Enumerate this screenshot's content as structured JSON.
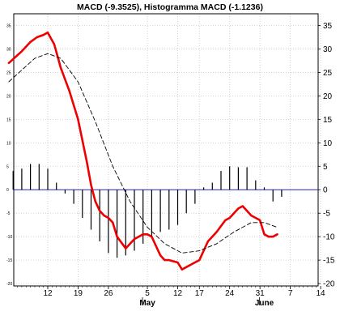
{
  "chart_data": {
    "type": "line",
    "title": "MACD (-9.3525), Histogramma MACD (-1.1236)",
    "ylim": [
      -20.5,
      37.5
    ],
    "y_ticks": [
      35,
      30,
      25,
      20,
      15,
      10,
      5,
      0,
      -5,
      -10,
      -15,
      -20
    ],
    "x_ticks": [
      {
        "label": "12",
        "day": 12
      },
      {
        "label": "19",
        "day": 19
      },
      {
        "label": "26",
        "day": 26
      },
      {
        "label": "5",
        "day": 35
      },
      {
        "label": "12",
        "day": 42
      },
      {
        "label": "17",
        "day": 47
      },
      {
        "label": "24",
        "day": 54
      },
      {
        "label": "31",
        "day": 61
      },
      {
        "label": "7",
        "day": 68
      },
      {
        "label": "14",
        "day": 75
      }
    ],
    "months": [
      {
        "label": "May",
        "day": 35
      },
      {
        "label": "June",
        "day": 62
      }
    ],
    "grid": true,
    "zero_line_color": "#2020c0",
    "series": [
      {
        "style": "macd",
        "color": "#ee0000",
        "x": [
          3,
          6,
          8,
          9.5,
          11,
          12,
          13.5,
          15,
          17,
          19,
          21,
          22,
          23,
          24,
          25,
          26,
          27,
          28,
          30,
          32,
          34,
          35,
          36,
          38,
          39,
          40,
          42,
          43,
          45,
          46,
          47,
          49,
          51,
          53,
          54,
          56,
          57,
          59,
          60,
          61,
          62,
          63,
          64,
          65
        ],
        "y": [
          27,
          29.5,
          31.5,
          32.5,
          33,
          33.5,
          31,
          26,
          21,
          15,
          6,
          1,
          -2.5,
          -4.5,
          -5.5,
          -6,
          -7,
          -10,
          -12.5,
          -10.5,
          -9.5,
          -9.5,
          -10,
          -14,
          -15,
          -15,
          -15.5,
          -17,
          -16,
          -15.5,
          -15,
          -11,
          -9,
          -6.5,
          -6,
          -4,
          -3.5,
          -5.5,
          -6,
          -6.5,
          -9.5,
          -10,
          -10,
          -9.5
        ]
      },
      {
        "style": "signal",
        "color": "#000000",
        "x": [
          3,
          6,
          9,
          12,
          15,
          19,
          23,
          27,
          31,
          35,
          39,
          43,
          47,
          51,
          55,
          59,
          62,
          65
        ],
        "y": [
          23,
          25.5,
          28,
          29,
          28,
          23,
          14.5,
          5,
          -2.5,
          -8,
          -11.5,
          -13.5,
          -13,
          -11.5,
          -9,
          -7,
          -7,
          -8
        ]
      }
    ],
    "histogram": {
      "color": "#000000",
      "x": [
        4,
        6,
        8,
        10,
        12,
        14,
        16,
        18,
        20,
        22,
        24,
        26,
        28,
        30,
        32,
        34,
        36,
        38,
        40,
        42,
        44,
        46,
        48,
        50,
        52,
        54,
        56,
        58,
        60,
        62,
        64,
        66
      ],
      "y": [
        4,
        4.5,
        5.5,
        5.5,
        4.5,
        1.5,
        -0.8,
        -3,
        -6,
        -8.5,
        -11,
        -13.5,
        -14.5,
        -14,
        -13,
        -11.5,
        -10,
        -9,
        -8.5,
        -7.5,
        -5,
        -3,
        0.5,
        1.5,
        4,
        5,
        4.8,
        4.8,
        2,
        0.5,
        -2.5,
        -1.5
      ]
    }
  }
}
